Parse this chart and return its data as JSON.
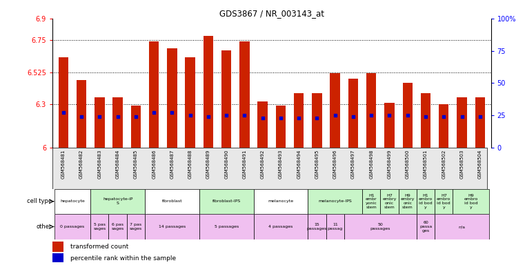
{
  "title": "GDS3867 / NR_003143_at",
  "samples": [
    "GSM568481",
    "GSM568482",
    "GSM568483",
    "GSM568484",
    "GSM568485",
    "GSM568486",
    "GSM568487",
    "GSM568488",
    "GSM568489",
    "GSM568490",
    "GSM568491",
    "GSM568492",
    "GSM568493",
    "GSM568494",
    "GSM568495",
    "GSM568496",
    "GSM568497",
    "GSM568498",
    "GSM568499",
    "GSM568500",
    "GSM568501",
    "GSM568502",
    "GSM568503",
    "GSM568504"
  ],
  "transformed_count": [
    6.63,
    6.47,
    6.35,
    6.35,
    6.29,
    6.74,
    6.69,
    6.63,
    6.78,
    6.68,
    6.74,
    6.32,
    6.29,
    6.38,
    6.38,
    6.52,
    6.48,
    6.52,
    6.31,
    6.45,
    6.38,
    6.3,
    6.35,
    6.35
  ],
  "percentile_rank": [
    27,
    24,
    24,
    24,
    24,
    27,
    27,
    25,
    24,
    25,
    25,
    23,
    23,
    23,
    23,
    25,
    24,
    25,
    25,
    25,
    24,
    24,
    24,
    24
  ],
  "bar_color": "#cc2200",
  "dot_color": "#0000cc",
  "y_min": 6.0,
  "y_max": 6.9,
  "y_ticks": [
    6.0,
    6.3,
    6.525,
    6.75,
    6.9
  ],
  "y_tick_labels": [
    "6",
    "6.3",
    "6.525",
    "6.75",
    "6.9"
  ],
  "right_y_ticks": [
    0,
    25,
    50,
    75,
    100
  ],
  "right_y_tick_labels": [
    "0",
    "25",
    "50",
    "75",
    "100%"
  ],
  "cell_groups": [
    {
      "label": "hepatocyte",
      "start": 0,
      "end": 1,
      "color": "#ffffff"
    },
    {
      "label": "hepatocyte-iP\nS",
      "start": 2,
      "end": 4,
      "color": "#c8f5c8"
    },
    {
      "label": "fibroblast",
      "start": 5,
      "end": 7,
      "color": "#ffffff"
    },
    {
      "label": "fibroblast-IPS",
      "start": 8,
      "end": 10,
      "color": "#c8f5c8"
    },
    {
      "label": "melanocyte",
      "start": 11,
      "end": 13,
      "color": "#ffffff"
    },
    {
      "label": "melanocyte-IPS",
      "start": 14,
      "end": 16,
      "color": "#c8f5c8"
    },
    {
      "label": "H1\nembr\nyonic\nstem",
      "start": 17,
      "end": 17,
      "color": "#c8f5c8"
    },
    {
      "label": "H7\nembry\nonic\nstem",
      "start": 18,
      "end": 18,
      "color": "#c8f5c8"
    },
    {
      "label": "H9\nembry\nonic\nstem",
      "start": 19,
      "end": 19,
      "color": "#c8f5c8"
    },
    {
      "label": "H1\nembro\nid bod\ny",
      "start": 20,
      "end": 20,
      "color": "#c8f5c8"
    },
    {
      "label": "H7\nembro\nid bod\ny",
      "start": 21,
      "end": 21,
      "color": "#c8f5c8"
    },
    {
      "label": "H9\nembro\nid bod\ny",
      "start": 22,
      "end": 23,
      "color": "#c8f5c8"
    }
  ],
  "other_groups": [
    {
      "label": "0 passages",
      "start": 0,
      "end": 1,
      "color": "#f0c0f0"
    },
    {
      "label": "5 pas\nsages",
      "start": 2,
      "end": 2,
      "color": "#f0c0f0"
    },
    {
      "label": "6 pas\nsages",
      "start": 3,
      "end": 3,
      "color": "#f0c0f0"
    },
    {
      "label": "7 pas\nsages",
      "start": 4,
      "end": 4,
      "color": "#f0c0f0"
    },
    {
      "label": "14 passages",
      "start": 5,
      "end": 7,
      "color": "#f0c0f0"
    },
    {
      "label": "5 passages",
      "start": 8,
      "end": 10,
      "color": "#f0c0f0"
    },
    {
      "label": "4 passages",
      "start": 11,
      "end": 13,
      "color": "#f0c0f0"
    },
    {
      "label": "15\npassages",
      "start": 14,
      "end": 14,
      "color": "#f0c0f0"
    },
    {
      "label": "11\npassag",
      "start": 15,
      "end": 15,
      "color": "#f0c0f0"
    },
    {
      "label": "50\npassages",
      "start": 16,
      "end": 19,
      "color": "#f0c0f0"
    },
    {
      "label": "60\npassa\nges",
      "start": 20,
      "end": 20,
      "color": "#f0c0f0"
    },
    {
      "label": "n/a",
      "start": 21,
      "end": 23,
      "color": "#f0c0f0"
    }
  ]
}
